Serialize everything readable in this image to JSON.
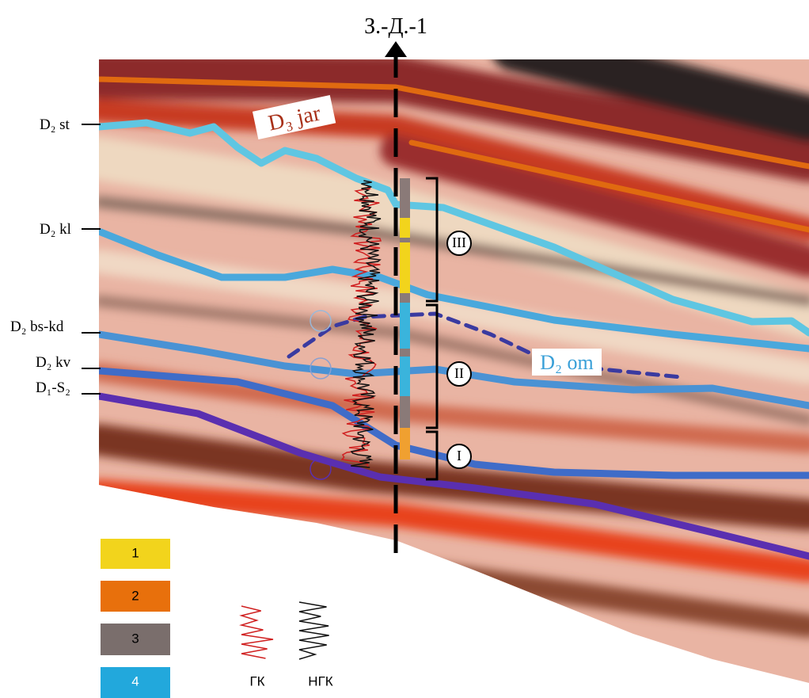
{
  "well": {
    "name": "З.-Д.-1"
  },
  "horizons": [
    {
      "label": "D₂ st"
    },
    {
      "label": "D₂ kl"
    },
    {
      "label": "D₂ bs-kd"
    },
    {
      "label": "D₂ kv"
    },
    {
      "label": "D₁-S₂"
    }
  ],
  "annotations": {
    "jar": "D₃ jar",
    "om": "D₂ om"
  },
  "zones": [
    "III",
    "II",
    "I"
  ],
  "legend": {
    "lithology": [
      "1",
      "2",
      "3",
      "4"
    ],
    "logs": [
      "ГК",
      "НГК"
    ]
  }
}
